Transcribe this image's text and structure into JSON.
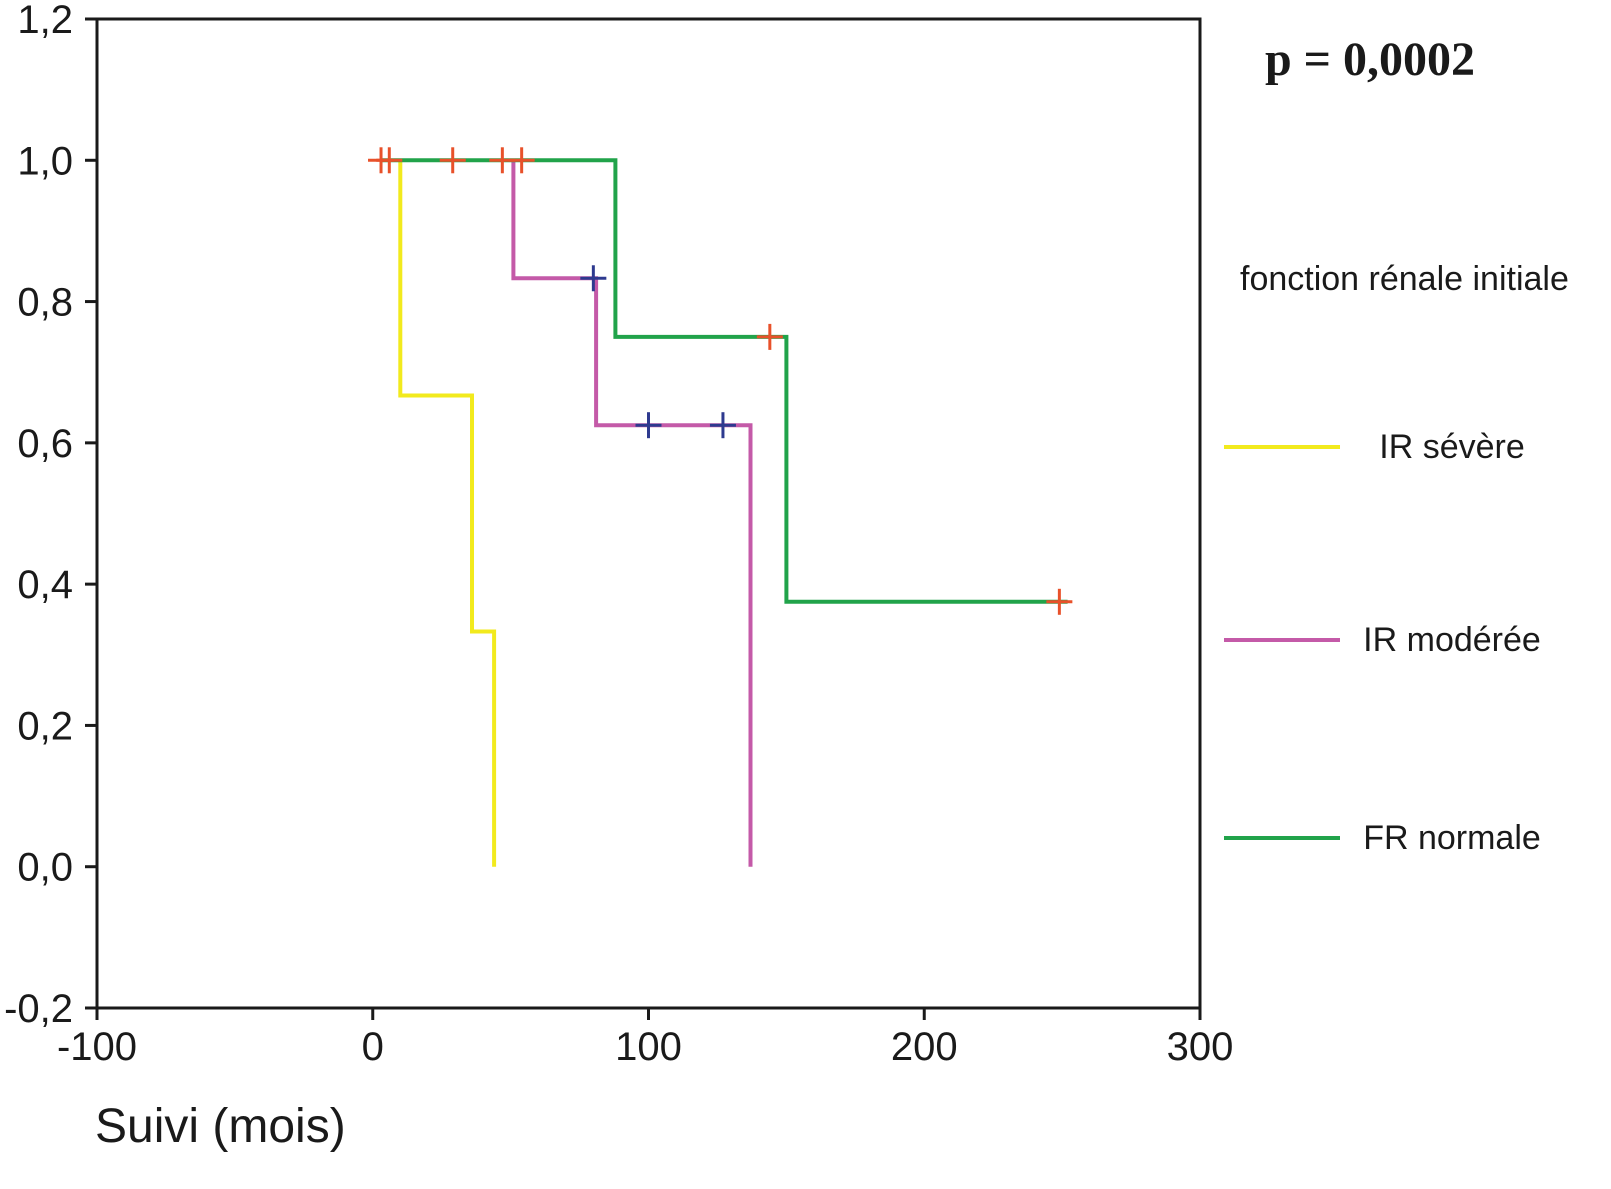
{
  "chart_data": {
    "type": "line",
    "subtype": "kaplan-meier",
    "annotation": "p = 0,0002",
    "xlabel": "Suivi (mois)",
    "ylabel": "",
    "xlim": [
      -100,
      300
    ],
    "ylim": [
      -0.2,
      1.2
    ],
    "xticks": [
      -100,
      0,
      100,
      200,
      300
    ],
    "xtick_labels": [
      "-100",
      "0",
      "100",
      "200",
      "300"
    ],
    "yticks": [
      -0.2,
      0.0,
      0.2,
      0.4,
      0.6,
      0.8,
      1.0,
      1.2
    ],
    "ytick_labels": [
      "-0,2",
      "0,0",
      "0,2",
      "0,4",
      "0,6",
      "0,8",
      "1,0",
      "1,2"
    ],
    "grid": false,
    "legend": {
      "title": "fonction rénale initiale",
      "placement": "right"
    },
    "series": [
      {
        "name": "IR sévère",
        "color": "#f2ea1d",
        "censor_color": "#e8512a",
        "steps": [
          [
            10,
            1.0
          ],
          [
            10,
            0.667
          ],
          [
            36,
            0.667
          ],
          [
            36,
            0.333
          ],
          [
            44,
            0.333
          ],
          [
            44,
            0.0
          ]
        ],
        "censored": []
      },
      {
        "name": "IR modérée",
        "color": "#c45aa8",
        "censor_color": "#2e3a8f",
        "steps": [
          [
            51,
            1.0
          ],
          [
            51,
            0.833
          ],
          [
            81,
            0.833
          ],
          [
            81,
            0.625
          ],
          [
            137,
            0.625
          ],
          [
            137,
            0.0
          ]
        ],
        "censored": [
          [
            80,
            0.833
          ],
          [
            100,
            0.625
          ],
          [
            127,
            0.625
          ]
        ]
      },
      {
        "name": "FR normale",
        "color": "#21a34a",
        "censor_color": "#e8512a",
        "steps": [
          [
            3,
            1.0
          ],
          [
            88,
            1.0
          ],
          [
            88,
            0.75
          ],
          [
            150,
            0.75
          ],
          [
            150,
            0.375
          ],
          [
            252,
            0.375
          ]
        ],
        "censored": [
          [
            3,
            1.0
          ],
          [
            6,
            1.0
          ],
          [
            29,
            1.0
          ],
          [
            47,
            1.0
          ],
          [
            54,
            1.0
          ],
          [
            144,
            0.75
          ],
          [
            249,
            0.375
          ]
        ]
      }
    ]
  }
}
